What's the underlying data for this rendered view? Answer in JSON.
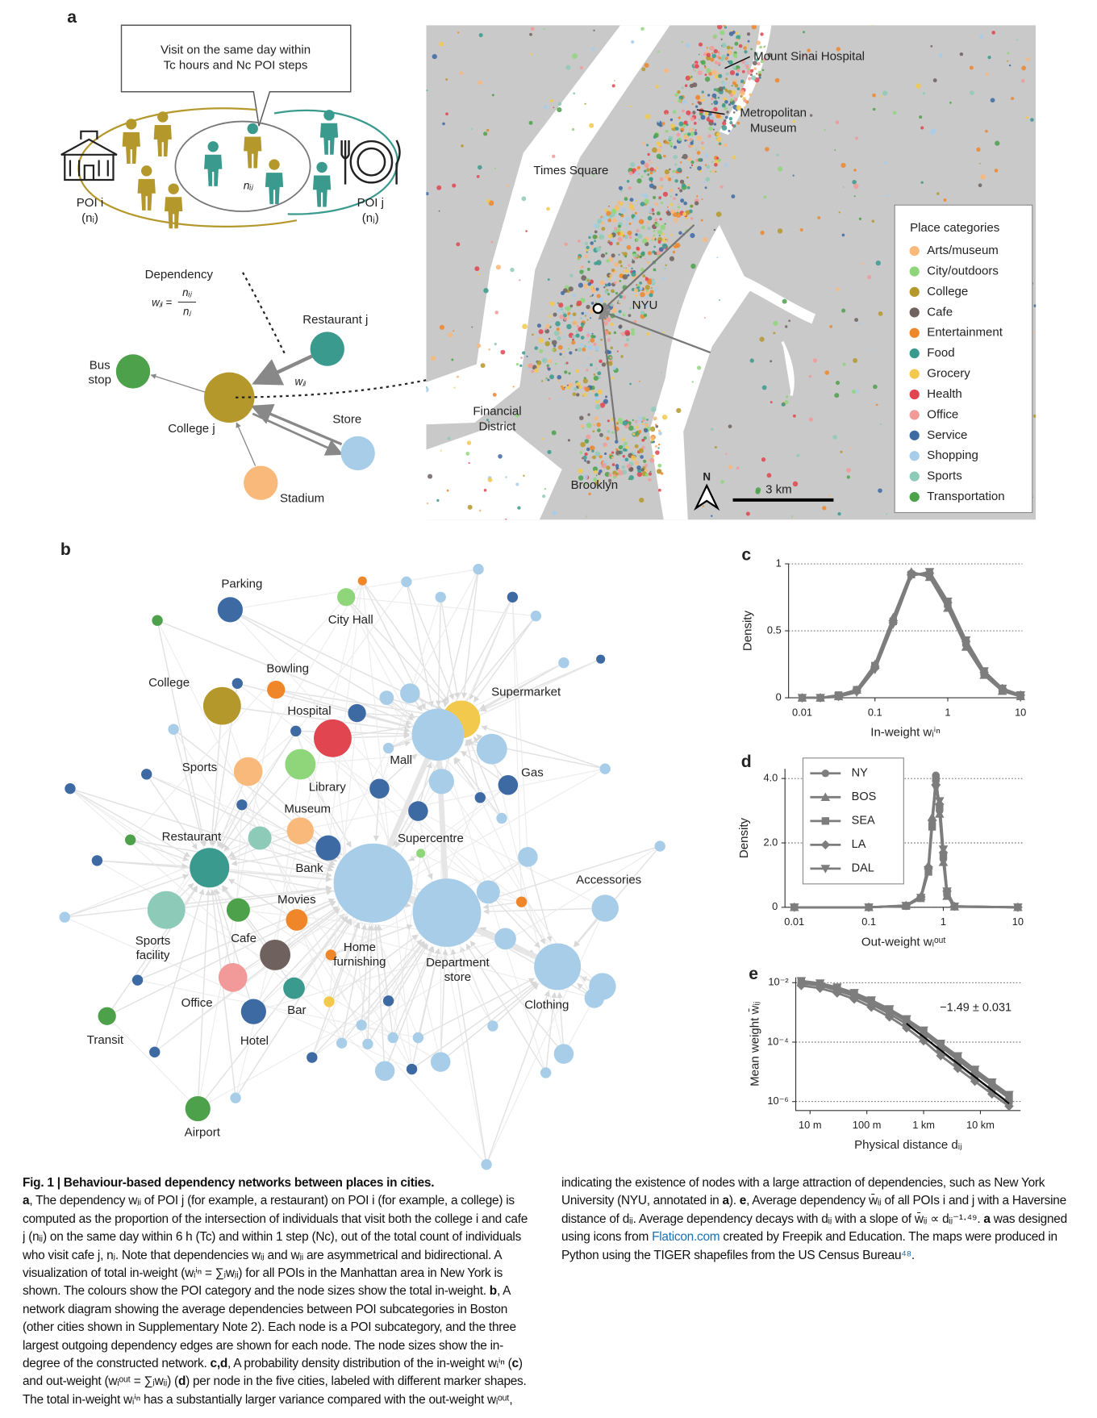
{
  "panel_labels": [
    "a",
    "b",
    "c",
    "d",
    "e"
  ],
  "diagram": {
    "callout": [
      "Visit on the same day within",
      "Tc hours and Nc POI steps"
    ],
    "poi_i": {
      "label": [
        "POI i",
        "(nᵢ)"
      ],
      "color": "#b5982b"
    },
    "poi_j": {
      "label": [
        "POI j",
        "(nⱼ)"
      ],
      "color": "#3a9a8e"
    },
    "n_ij": "nᵢⱼ",
    "dependency": "Dependency",
    "formula": {
      "lhs": "wⱼᵢ =",
      "num": "nᵢⱼ",
      "den": "nⱼ"
    },
    "edge_label": "wⱼᵢ",
    "nodes": [
      {
        "label": [
          "Restaurant j"
        ],
        "color": "#3a9a8e"
      },
      {
        "label": [
          "Bus",
          "stop"
        ],
        "color": "#4ca14a"
      },
      {
        "label": [
          "College j"
        ],
        "color": "#b5982b"
      },
      {
        "label": [
          "Store"
        ],
        "color": "#a8cde8"
      },
      {
        "label": [
          "Stadium"
        ],
        "color": "#f9b97a"
      }
    ]
  },
  "map": {
    "annotations": [
      [
        "Mount Sinai Hospital"
      ],
      [
        "Metropolitan",
        "Museum"
      ],
      [
        "Times Square"
      ],
      [
        "NYU"
      ],
      [
        "Financial",
        "District"
      ],
      [
        "Brooklyn"
      ]
    ],
    "north": "N",
    "scale": "3 km",
    "legend_title": "Place categories",
    "categories": [
      {
        "name": "Arts/museum",
        "color": "#f9b97a"
      },
      {
        "name": "City/outdoors",
        "color": "#8fd67a"
      },
      {
        "name": "College",
        "color": "#b5982b"
      },
      {
        "name": "Cafe",
        "color": "#6f615e"
      },
      {
        "name": "Entertainment",
        "color": "#f0862a"
      },
      {
        "name": "Food",
        "color": "#3a9a8e"
      },
      {
        "name": "Grocery",
        "color": "#f2c94c"
      },
      {
        "name": "Health",
        "color": "#e04550"
      },
      {
        "name": "Office",
        "color": "#f29a9a"
      },
      {
        "name": "Service",
        "color": "#3d6aa3"
      },
      {
        "name": "Shopping",
        "color": "#a8cde8"
      },
      {
        "name": "Sports",
        "color": "#8ecab8"
      },
      {
        "name": "Transportation",
        "color": "#4ca14a"
      }
    ]
  },
  "network": {
    "nodes": [
      {
        "label": [
          "Parking"
        ],
        "color": "#3d6aa3"
      },
      {
        "label": [
          "City Hall"
        ],
        "color": "#8fd67a"
      },
      {
        "label": [
          "Bowling"
        ],
        "color": "#f0862a"
      },
      {
        "label": [
          "College"
        ],
        "color": "#b5982b"
      },
      {
        "label": [
          "Hospital"
        ],
        "color": "#e04550"
      },
      {
        "label": [
          "Supermarket"
        ],
        "color": "#f2c94c"
      },
      {
        "label": [
          "Sports"
        ],
        "color": "#f9b97a"
      },
      {
        "label": [
          "Library"
        ],
        "color": "#8fd67a"
      },
      {
        "label": [
          "Mall"
        ],
        "color": "#a8cde8"
      },
      {
        "label": [
          "Gas"
        ],
        "color": "#3d6aa3"
      },
      {
        "label": [
          "Museum"
        ],
        "color": "#f9b97a"
      },
      {
        "label": [
          "Supercentre"
        ],
        "color": "#a8cde8"
      },
      {
        "label": [
          "Restaurant"
        ],
        "color": "#3a9a8e"
      },
      {
        "label": [
          "Bank"
        ],
        "color": "#3d6aa3"
      },
      {
        "label": [
          "Accessories"
        ],
        "color": "#a8cde8"
      },
      {
        "label": [
          "Movies"
        ],
        "color": "#f0862a"
      },
      {
        "label": [
          "Sports",
          "facility"
        ],
        "color": "#8ecab8"
      },
      {
        "label": [
          "Cafe"
        ],
        "color": "#6f615e"
      },
      {
        "label": [
          "Home",
          "furnishing"
        ],
        "color": "#a8cde8"
      },
      {
        "label": [
          "Department",
          "store"
        ],
        "color": "#a8cde8"
      },
      {
        "label": [
          "Clothing"
        ],
        "color": "#a8cde8"
      },
      {
        "label": [
          "Office"
        ],
        "color": "#f29a9a"
      },
      {
        "label": [
          "Bar"
        ],
        "color": "#3a9a8e"
      },
      {
        "label": [
          "Hotel"
        ],
        "color": "#3d6aa3"
      },
      {
        "label": [
          "Transit"
        ],
        "color": "#4ca14a"
      },
      {
        "label": [
          "Airport"
        ],
        "color": "#4ca14a"
      }
    ]
  },
  "chart_data": [
    {
      "type": "line",
      "ylabel": "Density",
      "xlabel": "In-weight wᵢⁱⁿ",
      "log_x": true,
      "grid": true,
      "color": "#7d7d7d",
      "xlim": [
        0.0065,
        10.6
      ],
      "ylim": [
        0,
        1
      ],
      "xticks": [
        0.01,
        0.1,
        1,
        10
      ],
      "yticks": [
        0,
        0.5,
        1
      ],
      "x": [
        0.01,
        0.0178,
        0.0316,
        0.0562,
        0.1,
        0.178,
        0.316,
        0.562,
        1,
        1.78,
        3.16,
        5.62,
        10
      ],
      "series": [
        {
          "marker": "circle",
          "values": [
            0,
            0,
            0.01,
            0.05,
            0.23,
            0.58,
            0.93,
            0.91,
            0.69,
            0.4,
            0.18,
            0.06,
            0.02
          ]
        },
        {
          "marker": "triangle",
          "values": [
            0,
            0,
            0.01,
            0.06,
            0.25,
            0.6,
            0.94,
            0.9,
            0.67,
            0.38,
            0.17,
            0.05,
            0.01
          ]
        },
        {
          "marker": "square",
          "values": [
            0,
            0,
            0.02,
            0.06,
            0.24,
            0.57,
            0.92,
            0.92,
            0.7,
            0.41,
            0.19,
            0.06,
            0.02
          ]
        },
        {
          "marker": "diamond",
          "values": [
            0,
            0,
            0.01,
            0.05,
            0.22,
            0.56,
            0.92,
            0.93,
            0.71,
            0.42,
            0.19,
            0.07,
            0.02
          ]
        },
        {
          "marker": "triangle-down",
          "values": [
            0,
            0,
            0.01,
            0.04,
            0.21,
            0.55,
            0.91,
            0.94,
            0.72,
            0.43,
            0.2,
            0.07,
            0.02
          ]
        }
      ]
    },
    {
      "type": "line",
      "ylabel": "Density",
      "xlabel": "Out-weight wᵢᵒᵘᵗ",
      "log_x": true,
      "grid": true,
      "legend": "upper left",
      "color": "#7d7d7d",
      "xlim": [
        0.0075,
        11.5
      ],
      "ylim": [
        0,
        4.3
      ],
      "xticks": [
        0.01,
        0.1,
        1,
        10
      ],
      "yticks": [
        0,
        {
          "value": 2,
          "label": "2.0"
        },
        {
          "value": 4,
          "label": "4.0"
        }
      ],
      "x": [
        0.01,
        0.1,
        0.316,
        0.5,
        0.631,
        0.708,
        0.794,
        0.891,
        1,
        1.12,
        1.41,
        10
      ],
      "series": [
        {
          "name": "NY",
          "marker": "circle",
          "values": [
            0,
            0,
            0.05,
            0.3,
            1.2,
            2.6,
            4.1,
            3.0,
            1.5,
            0.4,
            0.02,
            0
          ]
        },
        {
          "name": "BOS",
          "marker": "triangle",
          "values": [
            0,
            0,
            0.06,
            0.35,
            1.3,
            2.8,
            3.9,
            2.9,
            1.4,
            0.35,
            0.02,
            0
          ]
        },
        {
          "name": "SEA",
          "marker": "square",
          "values": [
            0,
            0,
            0.04,
            0.28,
            1.1,
            2.5,
            4.0,
            3.1,
            1.6,
            0.45,
            0.03,
            0
          ]
        },
        {
          "name": "LA",
          "marker": "diamond",
          "values": [
            0,
            0,
            0.05,
            0.32,
            1.25,
            2.7,
            3.8,
            3.2,
            1.7,
            0.5,
            0.03,
            0
          ]
        },
        {
          "name": "DAL",
          "marker": "triangle-down",
          "values": [
            0,
            0,
            0.05,
            0.3,
            1.15,
            2.6,
            3.7,
            3.3,
            1.8,
            0.5,
            0.03,
            0
          ]
        }
      ]
    },
    {
      "type": "line",
      "ylabel": "Mean weight w̄ᵢⱼ",
      "xlabel": "Physical distance dᵢⱼ",
      "log_x": true,
      "log_y": true,
      "grid": true,
      "color": "#7d7d7d",
      "fit_slope": -1.49,
      "fit_label": "−1.49 ± 0.031",
      "fit_color": "#000000",
      "xlim": [
        5.6,
        51000
      ],
      "ylim": [
        5e-07,
        0.015
      ],
      "xticks": [
        {
          "value": 10,
          "label": "10 m"
        },
        {
          "value": 100,
          "label": "100 m"
        },
        {
          "value": 1000,
          "label": "1 km"
        },
        {
          "value": 10000,
          "label": "10 km"
        }
      ],
      "yticks": [
        {
          "value": 1e-06,
          "label": "10⁻⁶"
        },
        {
          "value": 0.0001,
          "label": "10⁻⁴"
        },
        {
          "value": 0.01,
          "label": "10⁻²"
        }
      ],
      "x": [
        7,
        15,
        30,
        60,
        120,
        250,
        500,
        1000,
        2000,
        4000,
        8000,
        16000,
        32000
      ],
      "series": [
        {
          "marker": "circle",
          "values": [
            0.0095,
            0.008,
            0.0055,
            0.0035,
            0.0019,
            0.0009,
            0.0004,
            0.00015,
            5e-05,
            1.8e-05,
            6.5e-06,
            2.4e-06,
            9e-07
          ]
        },
        {
          "marker": "triangle",
          "values": [
            0.0105,
            0.0088,
            0.0062,
            0.004,
            0.0022,
            0.0011,
            0.0005,
            0.0002,
            7e-05,
            2.5e-05,
            9e-06,
            3.4e-06,
            1.3e-06
          ]
        },
        {
          "marker": "square",
          "values": [
            0.011,
            0.0092,
            0.0066,
            0.0043,
            0.0024,
            0.0012,
            0.00055,
            0.00022,
            8e-05,
            3e-05,
            1.1e-05,
            4e-06,
            1.5e-06
          ]
        },
        {
          "marker": "diamond",
          "values": [
            0.008,
            0.0065,
            0.0045,
            0.0028,
            0.0015,
            0.0007,
            0.0003,
            0.00011,
            3.5e-05,
            1.3e-05,
            4.8e-06,
            1.8e-06,
            7e-07
          ]
        },
        {
          "marker": "triangle-down",
          "values": [
            0.0115,
            0.0096,
            0.007,
            0.0046,
            0.0026,
            0.0013,
            0.0006,
            0.00025,
            9e-05,
            3.4e-05,
            1.2e-05,
            4.5e-06,
            1.7e-06
          ]
        }
      ]
    }
  ],
  "caption": [
    {
      "text": "Fig. 1 | Behaviour-based dependency networks between places in cities.",
      "bold": true,
      "title": true
    },
    {
      "text": "a",
      "bold": true
    },
    {
      "text": ", The dependency wⱼᵢ of POI j (for example, a restaurant) on POI i (for example, a college) is computed as the proportion of the intersection of individuals that visit both the college i and cafe j (nᵢⱼ) on the same day within 6 h (Tc) and within 1 step (Nc), out of the total count of individuals who visit cafe j, nⱼ. Note that dependencies wᵢⱼ and wⱼᵢ are asymmetrical and bidirectional. A visualization of total in-weight (wᵢⁱⁿ = ∑ⱼwⱼᵢ) for all POIs in the Manhattan area in New York is shown. The colours show the POI category and the node sizes show the total in-weight. "
    },
    {
      "text": "b",
      "bold": true
    },
    {
      "text": ", A network diagram showing the average dependencies between POI subcategories in Boston (other cities shown in Supplementary Note 2). Each node is a POI subcategory, and the three largest outgoing dependency edges are shown for each node. The node sizes show the in-degree of the constructed network. "
    },
    {
      "text": "c,d",
      "bold": true
    },
    {
      "text": ", A probability density distribution of the in-weight wᵢⁱⁿ ("
    },
    {
      "text": "c",
      "bold": true
    },
    {
      "text": ") and out-weight (wᵢᵒᵘᵗ = ∑ⱼwᵢⱼ) ("
    },
    {
      "text": "d",
      "bold": true
    },
    {
      "text": ") per node in the five cities, labeled with different marker shapes. The total in-weight wᵢⁱⁿ has a substantially larger variance compared with the out-weight wᵢᵒᵘᵗ, indicating the existence of nodes with a large attraction of dependencies, such as New York University (NYU, annotated in "
    },
    {
      "text": "a",
      "bold": true
    },
    {
      "text": "). "
    },
    {
      "text": "e",
      "bold": true
    },
    {
      "text": ", Average dependency w̄ᵢⱼ of all POIs i and j with a Haversine distance of dᵢⱼ. Average dependency decays with dᵢⱼ with a slope of w̄ᵢⱼ ∝ dᵢⱼ⁻¹·⁴⁹. "
    },
    {
      "text": "a",
      "bold": true
    },
    {
      "text": " was designed using icons from "
    },
    {
      "text": "Flaticon.com",
      "link": true
    },
    {
      "text": " created by Freepik and Education. The maps were produced in Python using the TIGER shapefiles from the US Census Bureau"
    },
    {
      "text": "⁴⁸",
      "link": true
    },
    {
      "text": "."
    }
  ]
}
